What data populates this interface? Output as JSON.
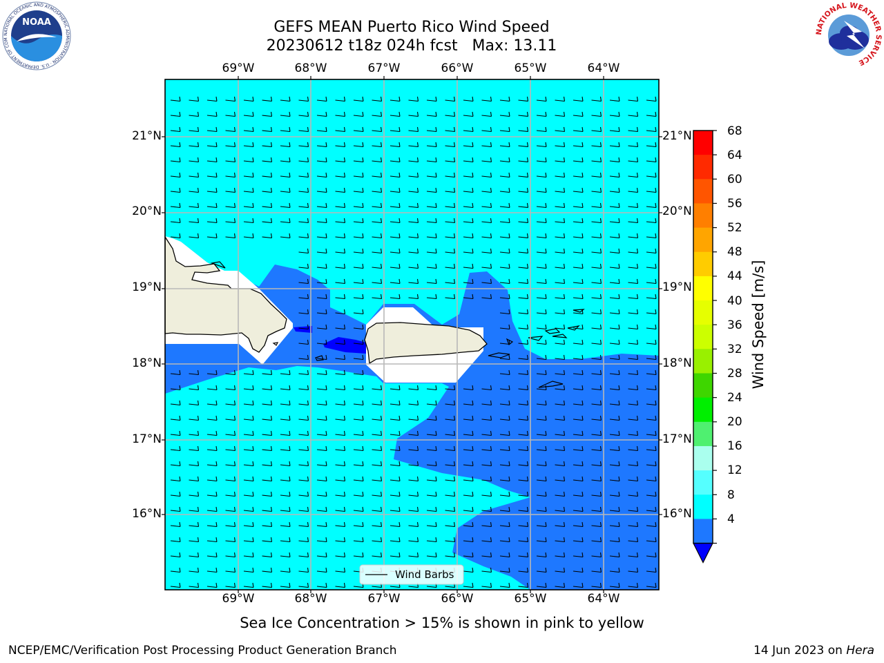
{
  "title": {
    "line1": "GEFS MEAN Puerto Rico Wind Speed",
    "line2": "20230612 t18z 024h fcst   Max: 13.11"
  },
  "axes": {
    "lon_labels": [
      "69°W",
      "68°W",
      "67°W",
      "66°W",
      "65°W",
      "64°W"
    ],
    "lat_labels": [
      "21°N",
      "20°N",
      "19°N",
      "18°N",
      "17°N",
      "16°N"
    ]
  },
  "legend": {
    "label": "Wind Barbs"
  },
  "colorbar": {
    "label": "Wind Speed [m/s]",
    "ticks": [
      "68",
      "64",
      "60",
      "56",
      "52",
      "48",
      "44",
      "40",
      "36",
      "32",
      "28",
      "24",
      "20",
      "16",
      "12",
      "8",
      "4"
    ],
    "colors": [
      "#ff0000",
      "#ff2a00",
      "#ff5500",
      "#ff7f00",
      "#ffa500",
      "#ffcc00",
      "#ffff00",
      "#e6ff00",
      "#ccff00",
      "#99f000",
      "#3ed600",
      "#00ef00",
      "#4ff070",
      "#aaffee",
      "#55ffff",
      "#00ffff",
      "#1e78ff"
    ],
    "under_color": "#0000ff"
  },
  "colors": {
    "ocean_high": "#00ffff",
    "ocean_low": "#1e78ff",
    "ocean_min": "#0000ff",
    "land": "#efeedc",
    "grid": "#b8b8b8"
  },
  "note": "Sea Ice Concentration > 15% is shown in pink to yellow",
  "footer": {
    "left": "NCEP/EMC/Verification Post Processing Product Generation Branch",
    "right_date": "14 Jun 2023 on ",
    "right_host": "Hera"
  },
  "logos": {
    "noaa": "NOAA",
    "noaa_ring": "NATIONAL OCEANIC AND ATMOSPHERIC ADMINISTRATION · U.S. DEPARTMENT OF COMMERCE",
    "nws_ring": "NATIONAL WEATHER SERVICE"
  }
}
